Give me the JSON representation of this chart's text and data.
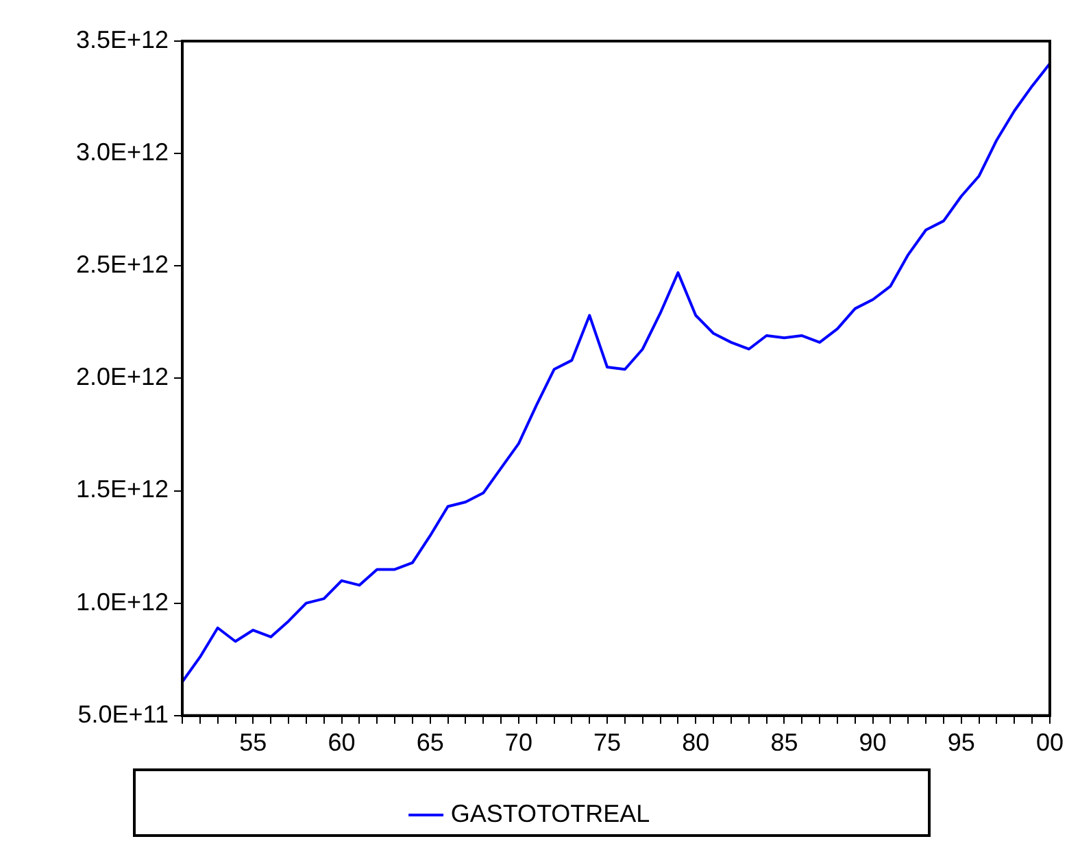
{
  "chart_data": {
    "type": "line",
    "x": [
      1951,
      1952,
      1953,
      1954,
      1955,
      1956,
      1957,
      1958,
      1959,
      1960,
      1961,
      1962,
      1963,
      1964,
      1965,
      1966,
      1967,
      1968,
      1969,
      1970,
      1971,
      1972,
      1973,
      1974,
      1975,
      1976,
      1977,
      1978,
      1979,
      1980,
      1981,
      1982,
      1983,
      1984,
      1985,
      1986,
      1987,
      1988,
      1989,
      1990,
      1991,
      1992,
      1993,
      1994,
      1995,
      1996,
      1997,
      1998,
      1999,
      2000
    ],
    "series": [
      {
        "name": "GASTOTOTREAL",
        "color": "#0000ff",
        "values": [
          650000000000.0,
          760000000000.0,
          890000000000.0,
          830000000000.0,
          880000000000.0,
          850000000000.0,
          920000000000.0,
          1000000000000.0,
          1020000000000.0,
          1100000000000.0,
          1080000000000.0,
          1150000000000.0,
          1150000000000.0,
          1180000000000.0,
          1300000000000.0,
          1430000000000.0,
          1450000000000.0,
          1490000000000.0,
          1600000000000.0,
          1710000000000.0,
          1880000000000.0,
          2040000000000.0,
          2080000000000.0,
          2280000000000.0,
          2050000000000.0,
          2040000000000.0,
          2130000000000.0,
          2290000000000.0,
          2470000000000.0,
          2280000000000.0,
          2200000000000.0,
          2160000000000.0,
          2130000000000.0,
          2190000000000.0,
          2180000000000.0,
          2190000000000.0,
          2160000000000.0,
          2220000000000.0,
          2310000000000.0,
          2350000000000.0,
          2410000000000.0,
          2550000000000.0,
          2660000000000.0,
          2700000000000.0,
          2810000000000.0,
          2900000000000.0,
          3060000000000.0,
          3190000000000.0,
          3300000000000.0,
          3400000000000.0
        ]
      }
    ],
    "xlim": [
      1951,
      2000
    ],
    "xticks": [
      {
        "value": 1951,
        "label": null
      },
      {
        "value": 1952,
        "label": null
      },
      {
        "value": 1953,
        "label": null
      },
      {
        "value": 1954,
        "label": null
      },
      {
        "value": 1955,
        "label": "55"
      },
      {
        "value": 1956,
        "label": null
      },
      {
        "value": 1957,
        "label": null
      },
      {
        "value": 1958,
        "label": null
      },
      {
        "value": 1959,
        "label": null
      },
      {
        "value": 1960,
        "label": "60"
      },
      {
        "value": 1961,
        "label": null
      },
      {
        "value": 1962,
        "label": null
      },
      {
        "value": 1963,
        "label": null
      },
      {
        "value": 1964,
        "label": null
      },
      {
        "value": 1965,
        "label": "65"
      },
      {
        "value": 1966,
        "label": null
      },
      {
        "value": 1967,
        "label": null
      },
      {
        "value": 1968,
        "label": null
      },
      {
        "value": 1969,
        "label": null
      },
      {
        "value": 1970,
        "label": "70"
      },
      {
        "value": 1971,
        "label": null
      },
      {
        "value": 1972,
        "label": null
      },
      {
        "value": 1973,
        "label": null
      },
      {
        "value": 1974,
        "label": null
      },
      {
        "value": 1975,
        "label": "75"
      },
      {
        "value": 1976,
        "label": null
      },
      {
        "value": 1977,
        "label": null
      },
      {
        "value": 1978,
        "label": null
      },
      {
        "value": 1979,
        "label": null
      },
      {
        "value": 1980,
        "label": "80"
      },
      {
        "value": 1981,
        "label": null
      },
      {
        "value": 1982,
        "label": null
      },
      {
        "value": 1983,
        "label": null
      },
      {
        "value": 1984,
        "label": null
      },
      {
        "value": 1985,
        "label": "85"
      },
      {
        "value": 1986,
        "label": null
      },
      {
        "value": 1987,
        "label": null
      },
      {
        "value": 1988,
        "label": null
      },
      {
        "value": 1989,
        "label": null
      },
      {
        "value": 1990,
        "label": "90"
      },
      {
        "value": 1991,
        "label": null
      },
      {
        "value": 1992,
        "label": null
      },
      {
        "value": 1993,
        "label": null
      },
      {
        "value": 1994,
        "label": null
      },
      {
        "value": 1995,
        "label": "95"
      },
      {
        "value": 1996,
        "label": null
      },
      {
        "value": 1997,
        "label": null
      },
      {
        "value": 1998,
        "label": null
      },
      {
        "value": 1999,
        "label": null
      },
      {
        "value": 2000,
        "label": "00"
      }
    ],
    "ylim": [
      500000000000.0,
      3500000000000.0
    ],
    "yticks": [
      {
        "value": 500000000000.0,
        "label": "5.0E+11"
      },
      {
        "value": 1000000000000.0,
        "label": "1.0E+12"
      },
      {
        "value": 1500000000000.0,
        "label": "1.5E+12"
      },
      {
        "value": 2000000000000.0,
        "label": "2.0E+12"
      },
      {
        "value": 2500000000000.0,
        "label": "2.5E+12"
      },
      {
        "value": 3000000000000.0,
        "label": "3.0E+12"
      },
      {
        "value": 3500000000000.0,
        "label": "3.5E+12"
      }
    ],
    "grid": false,
    "legend": "bottom",
    "marker": "none",
    "line_style": "solid"
  }
}
